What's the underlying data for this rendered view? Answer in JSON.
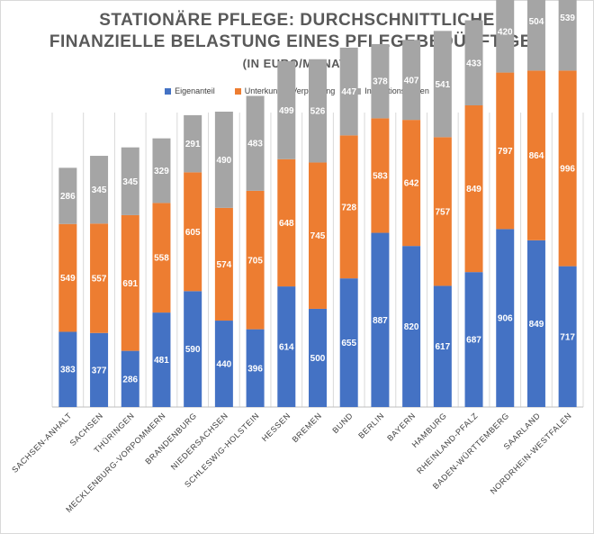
{
  "chart_data": {
    "type": "bar",
    "stacked": true,
    "title": "STATIONÄRE PFLEGE: DURCHSCHNITTLICHE",
    "title_line2": "FINANZIELLE BELASTUNG EINES PFLEGEBEDÜRFTIGEN",
    "subtitle": "(IN EURO/MONAT)",
    "legend_position": "top",
    "grid": "vertical",
    "categories": [
      "SACHSEN-ANHALT",
      "SACHSEN",
      "THÜRINGEN",
      "MECKLENBURG-VORPOMMERN",
      "BRANDENBURG",
      "NIEDERSACHSEN",
      "SCHLESWIG-HOLSTEIN",
      "HESSEN",
      "BREMEN",
      "BUND",
      "BERLIN",
      "BAYERN",
      "HAMBURG",
      "RHEINLAND-PFALZ",
      "BADEN-WÜRTTEMBERG",
      "SAARLAND",
      "NORDRHEIN-WESTFALEN"
    ],
    "series": [
      {
        "name": "Eigenanteil",
        "color": "#4472C4",
        "values": [
          383,
          377,
          286,
          481,
          590,
          440,
          396,
          614,
          500,
          655,
          887,
          820,
          617,
          687,
          906,
          849,
          717
        ]
      },
      {
        "name": "Unterkunft & Verpflegung",
        "color": "#ED7D31",
        "values": [
          549,
          557,
          691,
          558,
          605,
          574,
          705,
          648,
          745,
          728,
          583,
          642,
          757,
          849,
          797,
          864,
          996
        ]
      },
      {
        "name": "Investitionskosten",
        "color": "#A5A5A5",
        "values": [
          286,
          345,
          345,
          329,
          291,
          490,
          483,
          499,
          526,
          447,
          378,
          407,
          541,
          433,
          420,
          504,
          539
        ]
      }
    ]
  }
}
